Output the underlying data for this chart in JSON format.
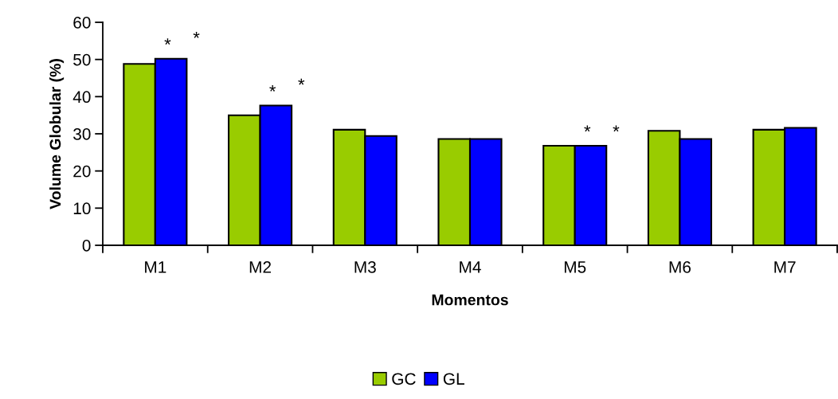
{
  "chart_data": {
    "type": "bar",
    "xlabel": "Momentos",
    "ylabel": "Volume Globular (%)",
    "categories": [
      "M1",
      "M2",
      "M3",
      "M4",
      "M5",
      "M6",
      "M7"
    ],
    "series": [
      {
        "name": "GC",
        "color": "#99cc00",
        "values": [
          48.8,
          35.0,
          31.1,
          28.6,
          26.8,
          30.8,
          31.1
        ]
      },
      {
        "name": "GL",
        "color": "#0000ff",
        "values": [
          50.2,
          37.6,
          29.4,
          28.6,
          26.8,
          28.6,
          31.6
        ]
      }
    ],
    "ylim": [
      0,
      60
    ],
    "yticks": [
      0,
      10,
      20,
      30,
      40,
      50,
      60
    ],
    "grid": false,
    "legend": "bottom",
    "annotations": [
      {
        "text": "*",
        "x": "M1",
        "y": 50.2
      },
      "*",
      {
        "text": "*",
        "x": "M2",
        "y": 37.6
      },
      "*",
      {
        "text": "*",
        "x": "M5",
        "y": 26.8
      },
      "*"
    ]
  }
}
